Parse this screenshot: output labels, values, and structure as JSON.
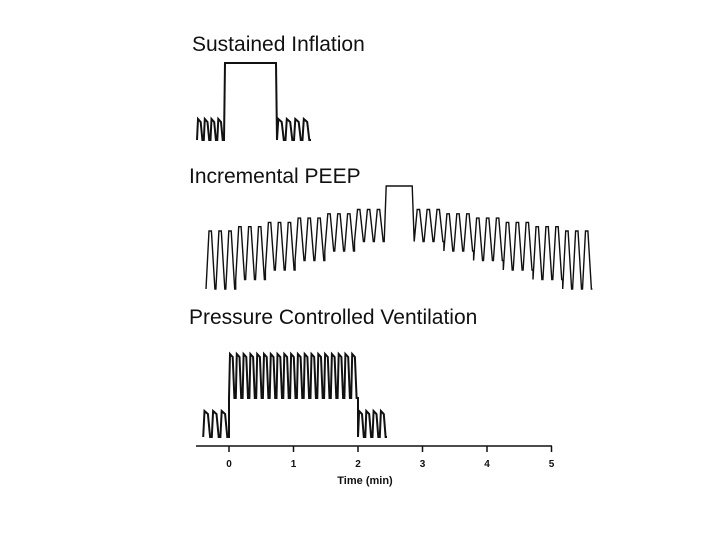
{
  "chart_data": {
    "type": "line",
    "panels": [
      {
        "title": "Sustained Inflation",
        "segments": [
          {
            "kind": "breaths",
            "count": 4,
            "level": "baseline"
          },
          {
            "kind": "hold",
            "level": "plateau"
          },
          {
            "kind": "breaths",
            "count": 4,
            "level": "baseline"
          }
        ]
      },
      {
        "title": "Incremental PEEP",
        "breath_groups_peep_steps": [
          0,
          1,
          2,
          3,
          4,
          5,
          5,
          4,
          3,
          2,
          1,
          0
        ],
        "breaths_per_step": 3,
        "hold_at_peak": true
      },
      {
        "title": "Pressure Controlled Ventilation",
        "segments": [
          {
            "kind": "breaths",
            "count": 3,
            "level": "baseline",
            "x_start": -0.4,
            "x_end": 0
          },
          {
            "kind": "breaths",
            "count": 19,
            "level": "elevated",
            "x_start": 0,
            "x_end": 2
          },
          {
            "kind": "breaths",
            "count": 4,
            "level": "baseline",
            "x_start": 2,
            "x_end": 2.45
          }
        ]
      }
    ],
    "xaxis": {
      "label": "Time (min)",
      "ticks": [
        0,
        1,
        2,
        3,
        4,
        5
      ],
      "range": [
        -0.4,
        5
      ]
    }
  }
}
